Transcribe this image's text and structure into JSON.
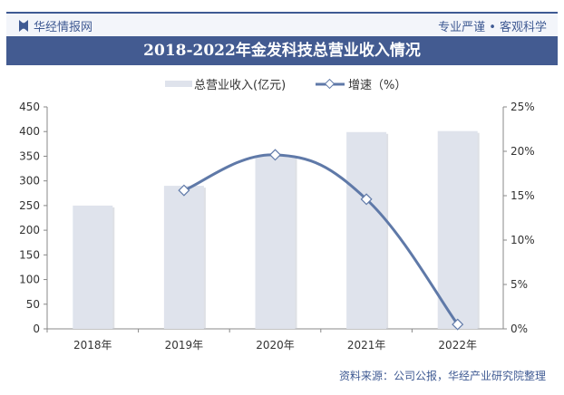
{
  "header": {
    "brand": "华经情报网",
    "slogan": "专业严谨 • 客观科学"
  },
  "footer": {
    "source": "资料来源：公司公报，华经产业研究院整理"
  },
  "chart_data": {
    "type": "bar+line",
    "title": "2018-2022年金发科技总营业收入情况",
    "categories": [
      "2018年",
      "2019年",
      "2020年",
      "2021年",
      "2022年"
    ],
    "series": [
      {
        "name": "总营业收入(亿元)",
        "type": "bar",
        "axis": "left",
        "values": [
          250,
          290,
          350,
          399,
          401
        ],
        "color": "#dfe3ec"
      },
      {
        "name": "增速（%）",
        "type": "line",
        "axis": "right",
        "values": [
          null,
          15.6,
          19.6,
          14.6,
          0.5
        ],
        "color": "#5f79a8"
      }
    ],
    "left_axis": {
      "ylim": [
        0,
        450
      ],
      "ticks": [
        "0",
        "50",
        "100",
        "150",
        "200",
        "250",
        "300",
        "350",
        "400",
        "450"
      ]
    },
    "right_axis": {
      "ylim": [
        0,
        25
      ],
      "ticks": [
        "0%",
        "5%",
        "10%",
        "15%",
        "20%",
        "25%"
      ]
    },
    "legend": "top-center",
    "grid": false
  }
}
